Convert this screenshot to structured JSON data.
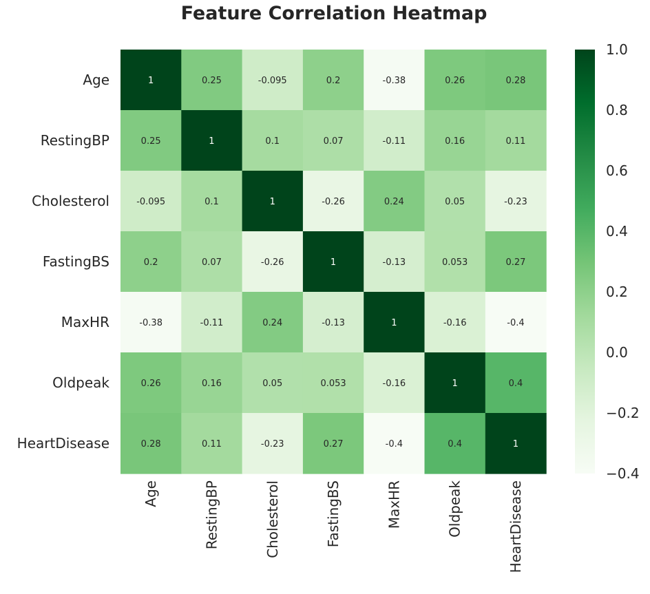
{
  "chart_data": {
    "type": "heatmap",
    "title": "Feature Correlation Heatmap",
    "xlabel": "",
    "ylabel": "",
    "labels": [
      "Age",
      "RestingBP",
      "Cholesterol",
      "FastingBS",
      "MaxHR",
      "Oldpeak",
      "HeartDisease"
    ],
    "matrix": [
      [
        1,
        0.25,
        -0.095,
        0.2,
        -0.38,
        0.26,
        0.28
      ],
      [
        0.25,
        1,
        0.1,
        0.07,
        -0.11,
        0.16,
        0.11
      ],
      [
        -0.095,
        0.1,
        1,
        -0.26,
        0.24,
        0.05,
        -0.23
      ],
      [
        0.2,
        0.07,
        -0.26,
        1,
        -0.13,
        0.053,
        0.27
      ],
      [
        -0.38,
        -0.11,
        0.24,
        -0.13,
        1,
        -0.16,
        -0.4
      ],
      [
        0.26,
        0.16,
        0.05,
        0.053,
        -0.16,
        1,
        0.4
      ],
      [
        0.28,
        0.11,
        -0.23,
        0.27,
        -0.4,
        0.4,
        1
      ]
    ],
    "cell_labels": [
      [
        "1",
        "0.25",
        "-0.095",
        "0.2",
        "-0.38",
        "0.26",
        "0.28"
      ],
      [
        "0.25",
        "1",
        "0.1",
        "0.07",
        "-0.11",
        "0.16",
        "0.11"
      ],
      [
        "-0.095",
        "0.1",
        "1",
        "-0.26",
        "0.24",
        "0.05",
        "-0.23"
      ],
      [
        "0.2",
        "0.07",
        "-0.26",
        "1",
        "-0.13",
        "0.053",
        "0.27"
      ],
      [
        "-0.38",
        "-0.11",
        "0.24",
        "-0.13",
        "1",
        "-0.16",
        "-0.4"
      ],
      [
        "0.26",
        "0.16",
        "0.05",
        "0.053",
        "-0.16",
        "1",
        "0.4"
      ],
      [
        "0.28",
        "0.11",
        "-0.23",
        "0.27",
        "-0.4",
        "0.4",
        "1"
      ]
    ],
    "colormap": "Greens",
    "vmin": -0.4,
    "vmax": 1.0,
    "colorbar_ticks": [
      1.0,
      0.8,
      0.6,
      0.4,
      0.2,
      0.0,
      -0.2,
      -0.4
    ],
    "colorbar_tick_labels": [
      "1.0",
      "0.8",
      "0.6",
      "0.4",
      "0.2",
      "0.0",
      "−0.2",
      "−0.4"
    ],
    "annotated": true,
    "grid": false,
    "legend_position": "right"
  }
}
